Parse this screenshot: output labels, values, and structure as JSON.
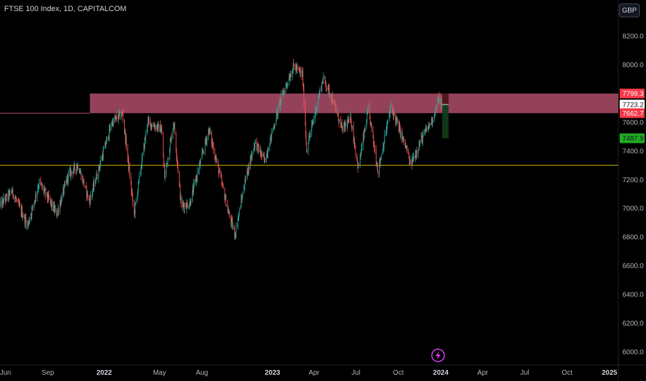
{
  "header": {
    "title": "FTSE 100 Index, 1D, CAPITALCOM"
  },
  "toolbar": {
    "currency_label": "GBP"
  },
  "colors": {
    "background": "#000000",
    "up": "#26a69a",
    "down": "#ef5350",
    "zone": "#b4506e",
    "support_line": "#c8b400",
    "target_zone": "#0f3d1a",
    "stop_zone": "#4a1218"
  },
  "chart_data": {
    "type": "candlestick",
    "title": "FTSE 100 Index, 1D, CAPITALCOM",
    "y_axis": {
      "ylim": [
        5950,
        8400
      ],
      "ticks": [
        "8200.0",
        "8000.0",
        "7800.0",
        "7600.0",
        "7400.0",
        "7200.0",
        "7000.0",
        "6800.0",
        "6600.0",
        "6400.0",
        "6200.0",
        "6000.0"
      ]
    },
    "x_axis": {
      "range": [
        "2021-05-20",
        "2025-01-20"
      ],
      "ticks": [
        {
          "label": "Jun",
          "date": "2021-06-01",
          "year": false
        },
        {
          "label": "Sep",
          "date": "2021-09-01",
          "year": false
        },
        {
          "label": "2022",
          "date": "2022-01-01",
          "year": true
        },
        {
          "label": "May",
          "date": "2022-05-01",
          "year": false
        },
        {
          "label": "Aug",
          "date": "2022-08-01",
          "year": false
        },
        {
          "label": "2023",
          "date": "2023-01-01",
          "year": true
        },
        {
          "label": "Apr",
          "date": "2023-04-01",
          "year": false
        },
        {
          "label": "Jul",
          "date": "2023-07-01",
          "year": false
        },
        {
          "label": "Oct",
          "date": "2023-10-01",
          "year": false
        },
        {
          "label": "2024",
          "date": "2024-01-01",
          "year": true
        },
        {
          "label": "Apr",
          "date": "2024-04-01",
          "year": false
        },
        {
          "label": "Jul",
          "date": "2024-07-01",
          "year": false
        },
        {
          "label": "Oct",
          "date": "2024-10-01",
          "year": false
        },
        {
          "label": "2025",
          "date": "2025-01-01",
          "year": true
        }
      ]
    },
    "price_path": [
      [
        "2021-05-20",
        7020
      ],
      [
        "2021-06-15",
        7120
      ],
      [
        "2021-07-19",
        6880
      ],
      [
        "2021-08-13",
        7180
      ],
      [
        "2021-09-20",
        6960
      ],
      [
        "2021-10-15",
        7230
      ],
      [
        "2021-11-05",
        7300
      ],
      [
        "2021-11-30",
        7050
      ],
      [
        "2021-12-31",
        7400
      ],
      [
        "2022-01-18",
        7600
      ],
      [
        "2022-02-10",
        7660
      ],
      [
        "2022-03-07",
        6960
      ],
      [
        "2022-04-05",
        7600
      ],
      [
        "2022-05-05",
        7550
      ],
      [
        "2022-05-12",
        7220
      ],
      [
        "2022-06-01",
        7600
      ],
      [
        "2022-06-17",
        7020
      ],
      [
        "2022-07-05",
        7030
      ],
      [
        "2022-08-16",
        7550
      ],
      [
        "2022-09-05",
        7280
      ],
      [
        "2022-09-29",
        6950
      ],
      [
        "2022-10-12",
        6820
      ],
      [
        "2022-11-03",
        7200
      ],
      [
        "2022-11-24",
        7460
      ],
      [
        "2022-12-15",
        7330
      ],
      [
        "2023-01-20",
        7770
      ],
      [
        "2023-02-16",
        7990
      ],
      [
        "2023-03-07",
        7930
      ],
      [
        "2023-03-16",
        7410
      ],
      [
        "2023-04-21",
        7910
      ],
      [
        "2023-05-10",
        7770
      ],
      [
        "2023-06-01",
        7550
      ],
      [
        "2023-06-20",
        7620
      ],
      [
        "2023-07-06",
        7280
      ],
      [
        "2023-07-28",
        7690
      ],
      [
        "2023-08-18",
        7260
      ],
      [
        "2023-09-15",
        7710
      ],
      [
        "2023-10-20",
        7400
      ],
      [
        "2023-10-27",
        7300
      ],
      [
        "2023-11-20",
        7480
      ],
      [
        "2023-12-14",
        7620
      ],
      [
        "2023-12-27",
        7760
      ],
      [
        "2024-01-04",
        7710
      ]
    ],
    "resistance_zone": {
      "from": 7662.7,
      "to": 7799.3,
      "start_date": "2021-12-01"
    },
    "support_line": {
      "value": 7300
    },
    "position": {
      "entry": 7723.2,
      "stop": 7799.3,
      "target": 7487.9,
      "start_date": "2024-01-04",
      "end_date": "2024-01-18"
    },
    "price_tags": [
      {
        "label": "7799.3",
        "value": 7799.3,
        "bg": "#f23645",
        "fg": "#ffffff"
      },
      {
        "label": "7723.2",
        "value": 7723.2,
        "bg": "#ffffff",
        "fg": "#131722"
      },
      {
        "label": "7662.7",
        "value": 7662.7,
        "bg": "#f23645",
        "fg": "#ffffff"
      },
      {
        "label": "7487.9",
        "value": 7487.9,
        "bg": "#22ab22",
        "fg": "#131722"
      }
    ]
  },
  "icons": {
    "replay": "lightning-bolt-icon"
  }
}
